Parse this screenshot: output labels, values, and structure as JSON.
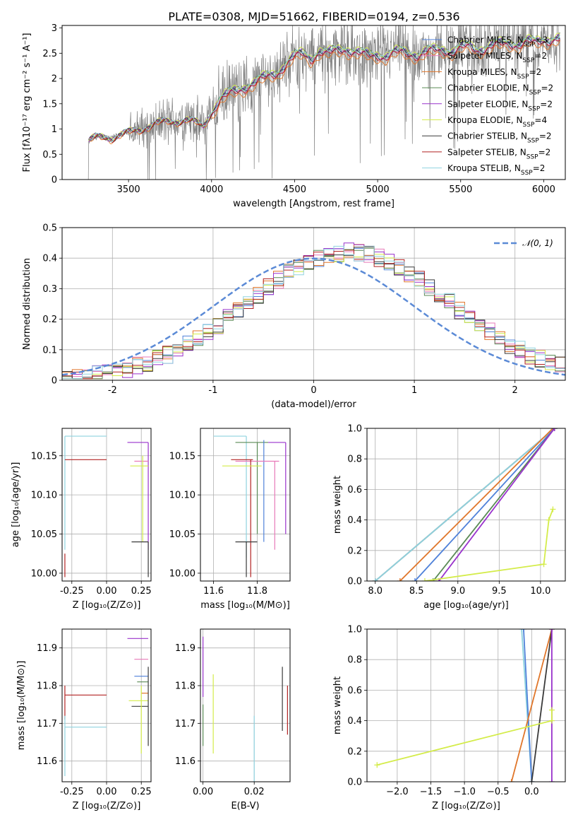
{
  "figure": {
    "title": "PLATE=0308, MJD=51662, FIBERID=0194, z=0.536"
  },
  "colors": {
    "chabrier_miles": "#4f81d9",
    "salpeter_miles": "#e879b8",
    "kroupa_miles": "#e0762a",
    "chabrier_elodie": "#5a8a55",
    "salpeter_elodie": "#9932cc",
    "kroupa_elodie": "#d4ec4a",
    "chabrier_stelib": "#3a3a3a",
    "salpeter_stelib": "#b22222",
    "kroupa_stelib": "#8fd3df",
    "data": "#808080",
    "gaussian": "#5b8ad6"
  },
  "chart_data": [
    {
      "id": "spectrum",
      "type": "line",
      "xlabel": "wavelength [Angstrom, rest frame]",
      "ylabel": "Flux [fλ10⁻¹⁷ erg cm⁻² s⁻¹ A⁻¹]",
      "xlim": [
        3100,
        6130
      ],
      "ylim": [
        0,
        3.05
      ],
      "xticks": [
        3500,
        4000,
        4500,
        5000,
        5500,
        6000
      ],
      "yticks": [
        0.0,
        0.5,
        1.0,
        1.5,
        2.0,
        2.5,
        3.0
      ],
      "legend_position": "top-right",
      "legend": [
        {
          "label": "Chabrier MILES, N_SSP=3",
          "color": "chabrier_miles"
        },
        {
          "label": "Salpeter MILES, N_SSP=2",
          "color": "salpeter_miles"
        },
        {
          "label": "Kroupa MILES, N_SSP=2",
          "color": "kroupa_miles"
        },
        {
          "label": "Chabrier ELODIE, N_SSP=2",
          "color": "chabrier_elodie"
        },
        {
          "label": "Salpeter ELODIE, N_SSP=2",
          "color": "salpeter_elodie"
        },
        {
          "label": "Kroupa ELODIE, N_SSP=4",
          "color": "kroupa_elodie"
        },
        {
          "label": "Chabrier STELIB, N_SSP=2",
          "color": "chabrier_stelib"
        },
        {
          "label": "Salpeter STELIB, N_SSP=2",
          "color": "salpeter_stelib"
        },
        {
          "label": "Kroupa STELIB, N_SSP=2",
          "color": "kroupa_stelib"
        }
      ],
      "model_continuum": {
        "x": [
          3260,
          3300,
          3350,
          3400,
          3450,
          3500,
          3550,
          3600,
          3650,
          3700,
          3750,
          3800,
          3850,
          3900,
          3950,
          4000,
          4050,
          4100,
          4150,
          4200,
          4250,
          4300,
          4350,
          4400,
          4450,
          4500,
          4550,
          4600,
          4650,
          4700,
          4750,
          4800,
          4850,
          4900,
          4950,
          5000,
          5050,
          5100,
          5150,
          5200,
          5250,
          5300,
          5350,
          5400,
          5450,
          5500,
          5550,
          5600,
          5650,
          5700,
          5750,
          5800,
          5850,
          5900,
          5950,
          6000,
          6050,
          6100
        ],
        "y": [
          0.75,
          0.82,
          0.86,
          0.84,
          0.88,
          0.92,
          0.98,
          1.05,
          1.1,
          1.12,
          1.15,
          1.18,
          1.2,
          1.12,
          1.05,
          1.35,
          1.6,
          1.7,
          1.78,
          1.85,
          1.92,
          2.0,
          2.08,
          2.15,
          2.3,
          2.45,
          2.52,
          2.42,
          2.55,
          2.5,
          2.58,
          2.62,
          2.55,
          2.5,
          2.48,
          2.5,
          2.45,
          2.52,
          2.55,
          2.52,
          2.48,
          2.55,
          2.58,
          2.6,
          2.55,
          2.62,
          2.65,
          2.6,
          2.62,
          2.68,
          2.7,
          2.72,
          2.7,
          2.75,
          2.72,
          2.78,
          2.8,
          2.82
        ]
      }
    },
    {
      "id": "residuals",
      "type": "line",
      "xlabel": "(data-model)/error",
      "ylabel": "Normed distribution",
      "xlim": [
        -2.5,
        2.5
      ],
      "ylim": [
        0,
        0.5
      ],
      "xticks": [
        -2,
        -1,
        0,
        1,
        2
      ],
      "yticks": [
        0.0,
        0.1,
        0.2,
        0.3,
        0.4,
        0.5
      ],
      "legend_position": "top-right",
      "legend": [
        {
          "label": "𝒩(0, 1)",
          "color": "gaussian"
        }
      ],
      "gaussian": {
        "mu": 0,
        "sigma": 1
      }
    },
    {
      "id": "age_vs_Z",
      "type": "scatter",
      "xlabel": "Z [log₁₀(Z/Z⊙)]",
      "ylabel": "age  [log₁₀(age/yr)]",
      "xlim": [
        -0.32,
        0.32
      ],
      "ylim": [
        9.99,
        10.185
      ],
      "xticks": [
        "-0.25",
        "0.00",
        "0.25"
      ],
      "yticks": [
        "10.00",
        "10.05",
        "10.10",
        "10.15"
      ],
      "segments": [
        {
          "color": "kroupa_stelib",
          "x": [
            -0.3,
            0.0
          ],
          "y": [
            10.175,
            10.175
          ]
        },
        {
          "color": "kroupa_stelib",
          "x": [
            -0.3,
            -0.3
          ],
          "y": [
            10.03,
            10.175
          ]
        },
        {
          "color": "salpeter_stelib",
          "x": [
            -0.3,
            0.0
          ],
          "y": [
            10.145,
            10.145
          ]
        },
        {
          "color": "salpeter_stelib",
          "x": [
            -0.3,
            -0.3
          ],
          "y": [
            9.995,
            10.025
          ]
        },
        {
          "color": "salpeter_elodie",
          "x": [
            0.15,
            0.3
          ],
          "y": [
            10.167,
            10.167
          ]
        },
        {
          "color": "salpeter_elodie",
          "x": [
            0.3,
            0.3
          ],
          "y": [
            10.03,
            10.167
          ]
        },
        {
          "color": "salpeter_miles",
          "x": [
            0.2,
            0.3
          ],
          "y": [
            10.143,
            10.143
          ]
        },
        {
          "color": "kroupa_elodie",
          "x": [
            0.17,
            0.3
          ],
          "y": [
            10.137,
            10.137
          ]
        },
        {
          "color": "kroupa_elodie",
          "x": [
            0.26,
            0.26
          ],
          "y": [
            10.04,
            10.15
          ]
        },
        {
          "color": "chabrier_stelib",
          "x": [
            0.18,
            0.3
          ],
          "y": [
            10.04,
            10.04
          ]
        },
        {
          "color": "chabrier_stelib",
          "x": [
            0.3,
            0.3
          ],
          "y": [
            9.995,
            10.04
          ]
        }
      ]
    },
    {
      "id": "age_vs_mass",
      "type": "scatter",
      "xlabel": "mass [log₁₀(M/M⊙)]",
      "ylabel": "",
      "xlim": [
        11.54,
        11.95
      ],
      "ylim": [
        9.99,
        10.185
      ],
      "xticks": [
        "11.6",
        "11.8"
      ],
      "yticks": [
        "10.00",
        "10.05",
        "10.10",
        "10.15"
      ],
      "segments": [
        {
          "color": "kroupa_stelib",
          "x": [
            11.6,
            11.75
          ],
          "y": [
            10.175,
            10.175
          ]
        },
        {
          "color": "kroupa_stelib",
          "x": [
            11.75,
            11.75
          ],
          "y": [
            10.02,
            10.175
          ]
        },
        {
          "color": "chabrier_elodie",
          "x": [
            11.7,
            11.85
          ],
          "y": [
            10.167,
            10.167
          ]
        },
        {
          "color": "chabrier_elodie",
          "x": [
            11.8,
            11.8
          ],
          "y": [
            10.05,
            10.167
          ]
        },
        {
          "color": "salpeter_elodie",
          "x": [
            11.85,
            11.93
          ],
          "y": [
            10.167,
            10.167
          ]
        },
        {
          "color": "salpeter_elodie",
          "x": [
            11.93,
            11.93
          ],
          "y": [
            10.05,
            10.167
          ]
        },
        {
          "color": "chabrier_miles",
          "x": [
            11.83,
            11.83
          ],
          "y": [
            10.04,
            10.17
          ]
        },
        {
          "color": "salpeter_miles",
          "x": [
            11.7,
            11.9
          ],
          "y": [
            10.143,
            10.143
          ]
        },
        {
          "color": "salpeter_miles",
          "x": [
            11.88,
            11.88
          ],
          "y": [
            10.03,
            10.143
          ]
        },
        {
          "color": "salpeter_stelib",
          "x": [
            11.68,
            11.78
          ],
          "y": [
            10.145,
            10.145
          ]
        },
        {
          "color": "salpeter_stelib",
          "x": [
            11.77,
            11.77
          ],
          "y": [
            9.995,
            10.145
          ]
        },
        {
          "color": "kroupa_elodie",
          "x": [
            11.64,
            11.82
          ],
          "y": [
            10.137,
            10.137
          ]
        },
        {
          "color": "chabrier_stelib",
          "x": [
            11.7,
            11.8
          ],
          "y": [
            10.04,
            10.04
          ]
        },
        {
          "color": "chabrier_stelib",
          "x": [
            11.75,
            11.75
          ],
          "y": [
            9.995,
            10.04
          ]
        }
      ]
    },
    {
      "id": "mass_weight_vs_age",
      "type": "line",
      "xlabel": "age  [log₁₀(age/yr)]",
      "ylabel": "mass weight",
      "xlim": [
        7.9,
        10.3
      ],
      "ylim": [
        0,
        1.0
      ],
      "xticks": [
        "8.0",
        "8.5",
        "9.0",
        "9.5",
        "10.0"
      ],
      "yticks": [
        "0.0",
        "0.2",
        "0.4",
        "0.6",
        "0.8",
        "1.0"
      ],
      "series": [
        {
          "color": "chabrier_stelib",
          "x": [
            8.0,
            10.17
          ],
          "y": [
            0.0,
            1.0
          ]
        },
        {
          "color": "kroupa_stelib",
          "x": [
            8.0,
            10.17
          ],
          "y": [
            0.0,
            1.0
          ]
        },
        {
          "color": "kroupa_miles",
          "x": [
            8.3,
            10.15
          ],
          "y": [
            0.0,
            1.0
          ]
        },
        {
          "color": "chabrier_miles",
          "x": [
            8.48,
            10.17
          ],
          "y": [
            0.0,
            1.0
          ]
        },
        {
          "color": "chabrier_elodie",
          "x": [
            8.7,
            10.17
          ],
          "y": [
            0.0,
            1.0
          ]
        },
        {
          "color": "salpeter_elodie",
          "x": [
            8.77,
            10.17
          ],
          "y": [
            0.0,
            1.0
          ]
        },
        {
          "color": "kroupa_elodie",
          "x": [
            8.6,
            10.04,
            10.1,
            10.15
          ],
          "y": [
            0.0,
            0.11,
            0.4,
            0.47
          ]
        }
      ]
    },
    {
      "id": "mass_vs_Z",
      "type": "scatter",
      "xlabel": "Z [log₁₀(Z/Z⊙)]",
      "ylabel": "mass [log₁₀(M/M⊙)]",
      "xlim": [
        -0.32,
        0.32
      ],
      "ylim": [
        11.545,
        11.95
      ],
      "xticks": [
        "-0.25",
        "0.00",
        "0.25"
      ],
      "yticks": [
        "11.6",
        "11.7",
        "11.8",
        "11.9"
      ],
      "segments": [
        {
          "color": "salpeter_stelib",
          "x": [
            -0.3,
            0.0
          ],
          "y": [
            11.775,
            11.775
          ]
        },
        {
          "color": "salpeter_stelib",
          "x": [
            -0.3,
            -0.3
          ],
          "y": [
            11.71,
            11.8
          ]
        },
        {
          "color": "kroupa_stelib",
          "x": [
            -0.3,
            0.0
          ],
          "y": [
            11.69,
            11.69
          ]
        },
        {
          "color": "kroupa_stelib",
          "x": [
            -0.3,
            -0.3
          ],
          "y": [
            11.56,
            11.72
          ]
        },
        {
          "color": "salpeter_elodie",
          "x": [
            0.15,
            0.3
          ],
          "y": [
            11.925,
            11.925
          ]
        },
        {
          "color": "salpeter_miles",
          "x": [
            0.2,
            0.3
          ],
          "y": [
            11.87,
            11.87
          ]
        },
        {
          "color": "chabrier_miles",
          "x": [
            0.2,
            0.3
          ],
          "y": [
            11.825,
            11.825
          ]
        },
        {
          "color": "chabrier_elodie",
          "x": [
            0.22,
            0.3
          ],
          "y": [
            11.81,
            11.81
          ]
        },
        {
          "color": "kroupa_miles",
          "x": [
            0.25,
            0.3
          ],
          "y": [
            11.78,
            11.78
          ]
        },
        {
          "color": "kroupa_elodie",
          "x": [
            0.16,
            0.3
          ],
          "y": [
            11.76,
            11.76
          ]
        },
        {
          "color": "chabrier_stelib",
          "x": [
            0.18,
            0.3
          ],
          "y": [
            11.745,
            11.745
          ]
        },
        {
          "color": "chabrier_stelib",
          "x": [
            0.3,
            0.3
          ],
          "y": [
            11.64,
            11.85
          ]
        },
        {
          "color": "kroupa_elodie",
          "x": [
            0.25,
            0.25
          ],
          "y": [
            11.62,
            11.8
          ]
        }
      ]
    },
    {
      "id": "mass_vs_ebv",
      "type": "scatter",
      "xlabel": "E(B-V)",
      "ylabel": "",
      "xlim": [
        -0.001,
        0.034
      ],
      "ylim": [
        11.545,
        11.95
      ],
      "xticks": [
        "0.00",
        "0.02"
      ],
      "yticks": [
        "11.6",
        "11.7",
        "11.8",
        "11.9"
      ],
      "segments": [
        {
          "color": "salpeter_elodie",
          "x": [
            0.0,
            0.0
          ],
          "y": [
            11.77,
            11.93
          ]
        },
        {
          "color": "chabrier_elodie",
          "x": [
            0.0,
            0.0
          ],
          "y": [
            11.64,
            11.75
          ]
        },
        {
          "color": "kroupa_elodie",
          "x": [
            0.004,
            0.004
          ],
          "y": [
            11.62,
            11.83
          ]
        },
        {
          "color": "kroupa_stelib",
          "x": [
            0.02,
            0.02
          ],
          "y": [
            11.545,
            11.72
          ]
        },
        {
          "color": "chabrier_stelib",
          "x": [
            0.031,
            0.031
          ],
          "y": [
            11.68,
            11.85
          ]
        },
        {
          "color": "salpeter_stelib",
          "x": [
            0.033,
            0.033
          ],
          "y": [
            11.67,
            11.8
          ]
        }
      ]
    },
    {
      "id": "mass_weight_vs_Z",
      "type": "line",
      "xlabel": "Z [log₁₀(Z/Z⊙)]",
      "ylabel": "mass weight",
      "xlim": [
        -2.45,
        0.5
      ],
      "ylim": [
        0,
        1.0
      ],
      "xticks": [
        "−2.0",
        "−1.5",
        "−1.0",
        "−0.5",
        "0.0"
      ],
      "yticks": [
        "0.0",
        "0.2",
        "0.4",
        "0.6",
        "0.8",
        "1.0"
      ],
      "series": [
        {
          "color": "kroupa_stelib",
          "x": [
            -0.15,
            0.0
          ],
          "y": [
            1.0,
            0.0
          ]
        },
        {
          "color": "chabrier_miles",
          "x": [
            -0.12,
            0.0
          ],
          "y": [
            1.0,
            0.0
          ]
        },
        {
          "color": "kroupa_miles",
          "x": [
            -0.3,
            0.3
          ],
          "y": [
            0.0,
            1.0
          ]
        },
        {
          "color": "chabrier_stelib",
          "x": [
            0.0,
            0.3
          ],
          "y": [
            0.0,
            1.0
          ]
        },
        {
          "color": "salpeter_elodie",
          "x": [
            0.3,
            0.3
          ],
          "y": [
            0.0,
            1.0
          ]
        },
        {
          "color": "kroupa_elodie",
          "x": [
            -2.3,
            0.3,
            0.3
          ],
          "y": [
            0.11,
            0.4,
            0.47
          ]
        }
      ]
    }
  ]
}
